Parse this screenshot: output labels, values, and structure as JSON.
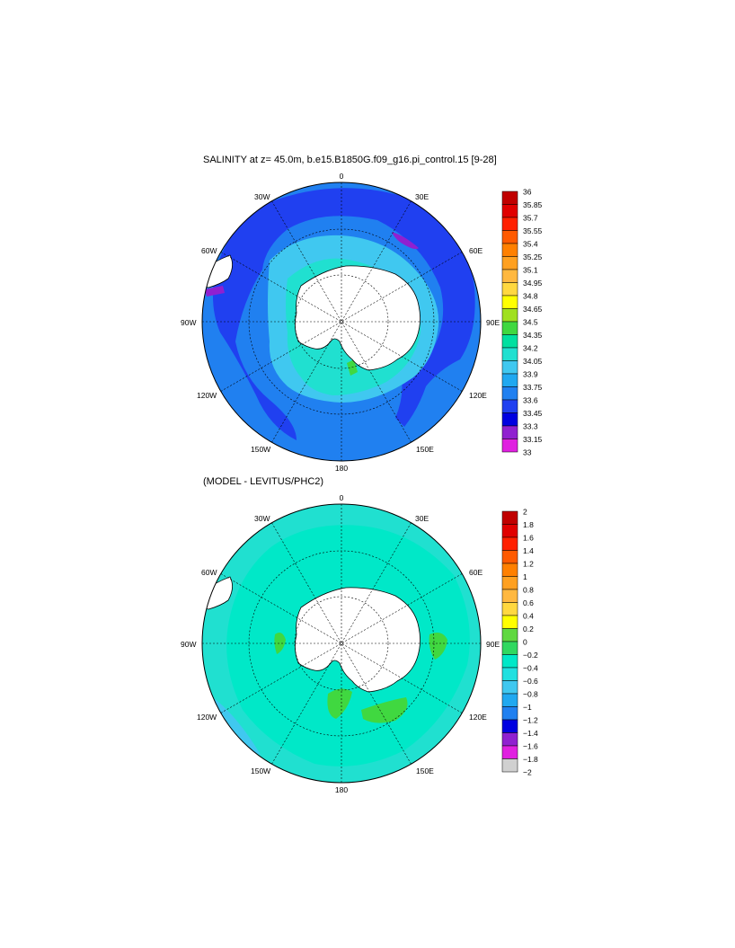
{
  "top_panel": {
    "title": "SALINITY at z=  45.0m, b.e15.B1850G.f09_g16.pi_control.15 [9-28]",
    "colorbar": {
      "labels": [
        "36",
        "35.85",
        "35.7",
        "35.55",
        "35.4",
        "35.25",
        "35.1",
        "34.95",
        "34.8",
        "34.65",
        "34.5",
        "34.35",
        "34.2",
        "34.05",
        "33.9",
        "33.75",
        "33.6",
        "33.45",
        "33.3",
        "33.15",
        "33"
      ],
      "colors": [
        "#c00000",
        "#e00000",
        "#ff2000",
        "#ff5a00",
        "#ff8000",
        "#ffa020",
        "#ffb840",
        "#ffd840",
        "#ffff00",
        "#a0e020",
        "#40d840",
        "#00e0a0",
        "#20e0d0",
        "#40c8f0",
        "#20a8f0",
        "#2080f0",
        "#2040f0",
        "#0000e0",
        "#9020d0",
        "#e020e0",
        "#d0d0d0",
        "#707070"
      ]
    }
  },
  "bottom_panel": {
    "title": "(MODEL - LEVITUS/PHC2)",
    "colorbar": {
      "labels": [
        "2",
        "1.8",
        "1.6",
        "1.4",
        "1.2",
        "1",
        "0.8",
        "0.6",
        "0.4",
        "0.2",
        "0",
        "−0.2",
        "−0.4",
        "−0.6",
        "−0.8",
        "−1",
        "−1.2",
        "−1.4",
        "−1.6",
        "−1.8",
        "−2"
      ],
      "colors": [
        "#c00000",
        "#e00000",
        "#ff2000",
        "#ff5a00",
        "#ff8000",
        "#ffa020",
        "#ffb840",
        "#ffd840",
        "#ffff00",
        "#60d840",
        "#30d860",
        "#00e8c8",
        "#20e0e0",
        "#40c8f0",
        "#20a8f0",
        "#2080f0",
        "#0000e0",
        "#9020d0",
        "#e020e0",
        "#d0d0d0",
        "#707070"
      ]
    }
  },
  "map_labels": {
    "lon_0": "0",
    "lon_30w": "30W",
    "lon_30e": "30E",
    "lon_60w": "60W",
    "lon_60e": "60E",
    "lon_90w": "90W",
    "lon_90e": "90E",
    "lon_120w": "120W",
    "lon_120e": "120E",
    "lon_150w": "150W",
    "lon_150e": "150E",
    "lon_180": "180"
  },
  "colors": {
    "land": "#ffffff",
    "top_ocean_outer": "#2080f0",
    "top_ocean_band": "#2040f0",
    "top_ocean_shelf": "#40c8f0",
    "top_ocean_coast": "#20e0d0",
    "bottom_ocean": "#20e0d0",
    "bottom_ocean_light": "#00e8c8",
    "bottom_positive": "#40d840"
  }
}
